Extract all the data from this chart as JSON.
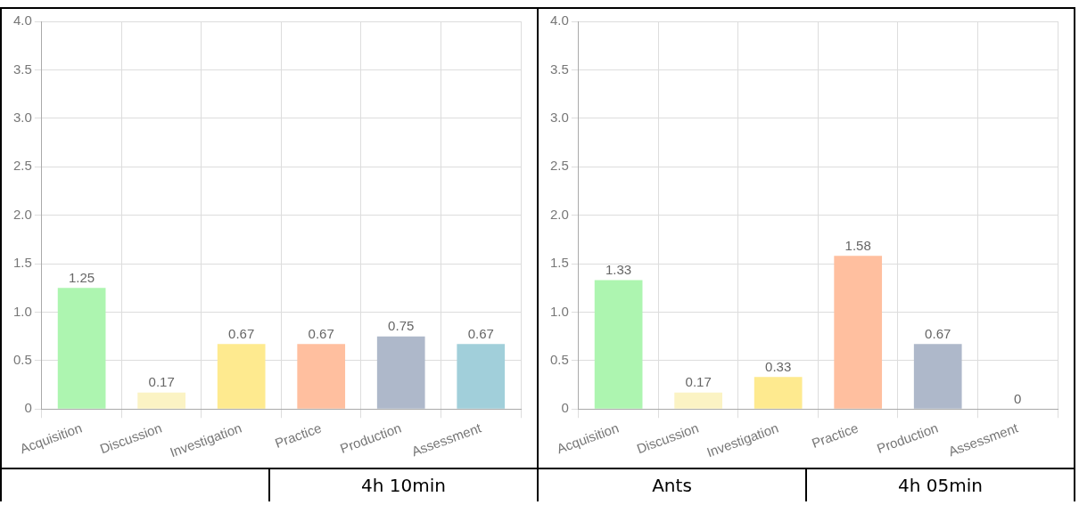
{
  "chart_data": [
    {
      "type": "bar",
      "categories": [
        "Acquisition",
        "Discussion",
        "Investigation",
        "Practice",
        "Production",
        "Assessment"
      ],
      "values": [
        1.25,
        0.17,
        0.67,
        0.67,
        0.75,
        0.67
      ],
      "colors": [
        "#adf5b0",
        "#fbf3c4",
        "#feea8f",
        "#ffbf9f",
        "#aeb8ca",
        "#a1cfda"
      ],
      "ylim": [
        0,
        4
      ],
      "yticks": [
        0,
        0.5,
        {
          "value": 1,
          "label": "1.0"
        },
        1.5,
        {
          "value": 2,
          "label": "2.0"
        },
        2.5,
        {
          "value": 3,
          "label": "3.0"
        },
        3.5,
        {
          "value": 4,
          "label": "4.0"
        }
      ],
      "grid": true,
      "data_labels": true,
      "annotations": [
        "4h 10min"
      ]
    },
    {
      "type": "bar",
      "categories": [
        "Acquisition",
        "Discussion",
        "Investigation",
        "Practice",
        "Production",
        "Assessment"
      ],
      "values": [
        1.33,
        0.17,
        0.33,
        1.58,
        0.67,
        0
      ],
      "colors": [
        "#adf5b0",
        "#fbf3c4",
        "#feea8f",
        "#ffbf9f",
        "#aeb8ca",
        "#a1cfda"
      ],
      "ylim": [
        0,
        4
      ],
      "yticks": [
        0,
        0.5,
        {
          "value": 1,
          "label": "1.0"
        },
        1.5,
        {
          "value": 2,
          "label": "2.0"
        },
        2.5,
        {
          "value": 3,
          "label": "3.0"
        },
        3.5,
        {
          "value": 4,
          "label": "4.0"
        }
      ],
      "grid": true,
      "data_labels": true,
      "annotations": [
        "Ants",
        "4h 05min"
      ]
    }
  ]
}
